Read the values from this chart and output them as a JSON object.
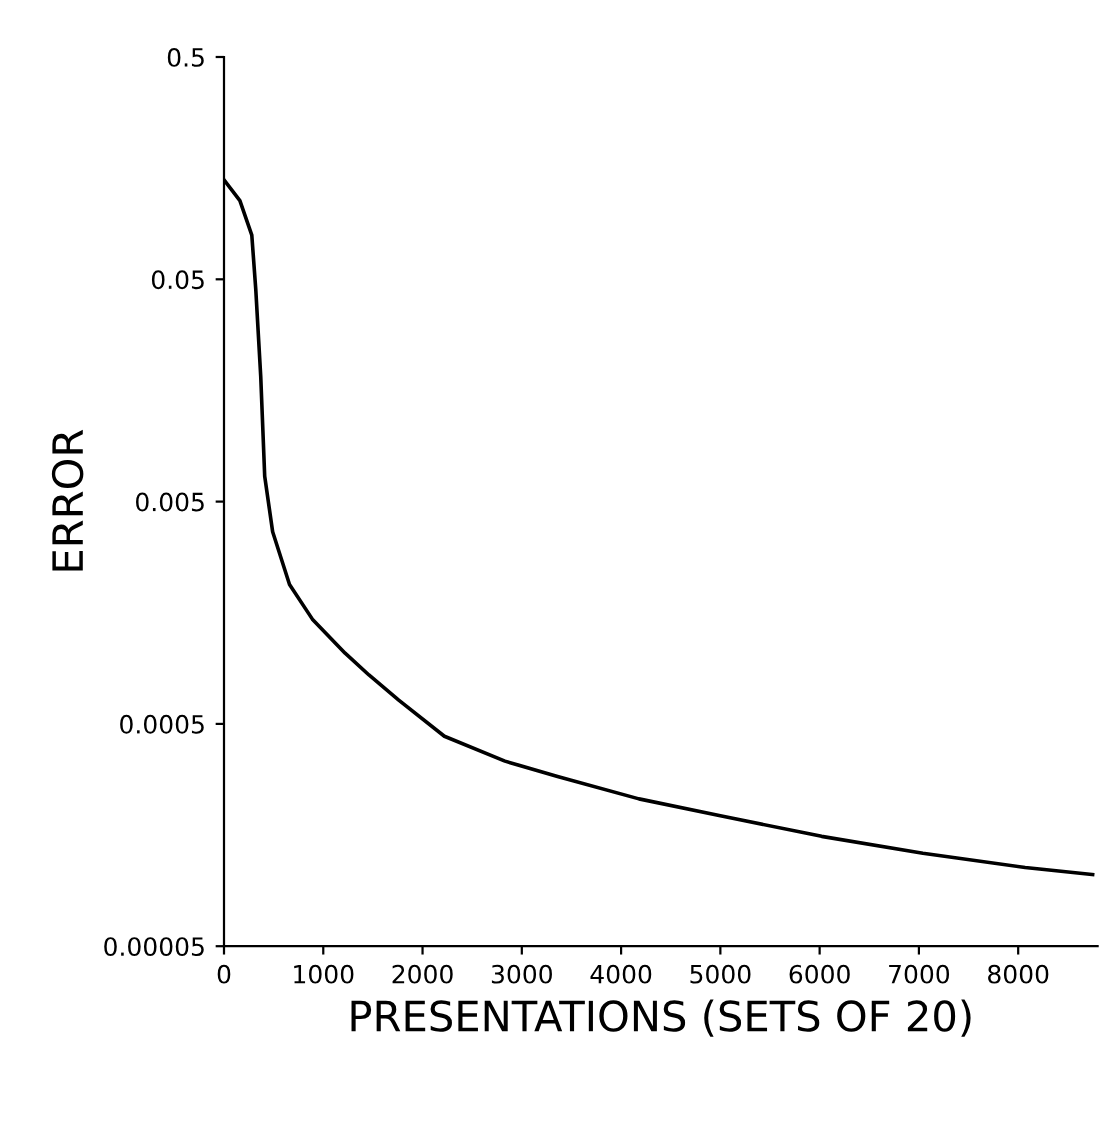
{
  "chart_data": {
    "type": "line",
    "xlabel": "PRESENTATIONS (SETS OF 20)",
    "ylabel": "ERROR",
    "log": "y",
    "grid": false,
    "marker": "none",
    "line_style": "solid",
    "xlim": [
      0,
      8800
    ],
    "ylim": [
      5e-05,
      0.5
    ],
    "xticks": [
      0,
      1000,
      2000,
      3000,
      4000,
      5000,
      6000,
      7000,
      8000
    ],
    "yticks": [
      {
        "value": 0.5,
        "label": "0.5"
      },
      {
        "value": 0.05,
        "label": "0.05"
      },
      {
        "value": 0.005,
        "label": "0.005"
      },
      {
        "value": 0.0005,
        "label": "0.0005"
      },
      {
        "value": 5e-05,
        "label": "0.00005"
      }
    ],
    "series": [
      {
        "color": "#000000",
        "x": [
          0,
          160,
          280,
          320,
          370,
          410,
          490,
          660,
          890,
          1220,
          1460,
          1760,
          2220,
          2830,
          3360,
          4180,
          5000,
          6020,
          7040,
          8070,
          8750
        ],
        "values": [
          0.14,
          0.113,
          0.079,
          0.045,
          0.0183,
          0.0065,
          0.00366,
          0.00212,
          0.00148,
          0.00104,
          0.00083,
          0.00064,
          0.00044,
          0.00034,
          0.00029,
          0.00023,
          0.000193,
          0.000156,
          0.000131,
          0.000113,
          0.000105
        ]
      }
    ]
  }
}
